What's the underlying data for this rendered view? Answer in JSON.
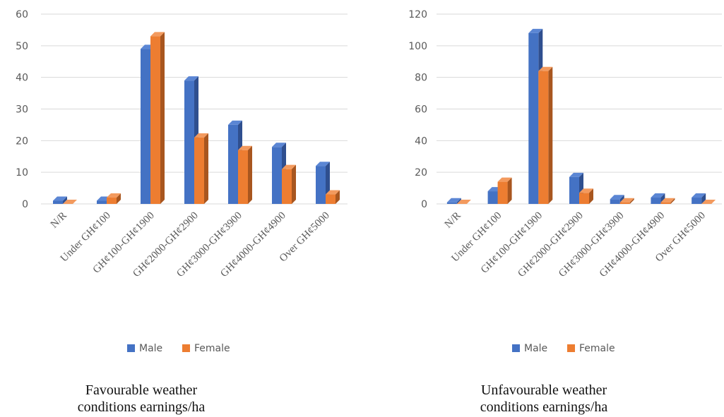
{
  "legend": [
    {
      "label": "Male",
      "color": "#4472C4",
      "side": "#2F4F8F",
      "top": "#5B86D4"
    },
    {
      "label": "Female",
      "color": "#ED7D31",
      "side": "#A8561F",
      "top": "#F39A5E"
    }
  ],
  "captions": [
    {
      "line1": "Favourable weather",
      "line2": "conditions earnings/ha"
    },
    {
      "line1": "Unfavourable weather",
      "line2": "conditions earnings/ha"
    }
  ],
  "chart_data": [
    {
      "type": "bar",
      "title": "",
      "categories": [
        "N/R",
        "Under GH¢100",
        "GH¢100-GH¢1900",
        "GH¢2000-GH¢2900",
        "GH¢3000-GH¢3900",
        "GH¢4000-GH¢4900",
        "Over GH¢5000"
      ],
      "series": [
        {
          "name": "Male",
          "values": [
            1,
            1,
            49,
            39,
            25,
            18,
            12
          ]
        },
        {
          "name": "Female",
          "values": [
            0,
            2,
            53,
            21,
            17,
            11,
            3
          ]
        }
      ],
      "yticks": [
        0,
        10,
        20,
        30,
        40,
        50,
        60
      ],
      "ylim": [
        0,
        60
      ],
      "grid": true,
      "legend_position": "bottom"
    },
    {
      "type": "bar",
      "title": "",
      "categories": [
        "N/R",
        "Under GH¢100",
        "GH¢100-GH¢1900",
        "GH¢2000-GH¢2900",
        "GH¢3000-GH¢3900",
        "GH¢4000-GH¢4900",
        "Over GH¢5000"
      ],
      "series": [
        {
          "name": "Male",
          "values": [
            1,
            8,
            108,
            17,
            3,
            4,
            4
          ]
        },
        {
          "name": "Female",
          "values": [
            0,
            14,
            84,
            7,
            1,
            1,
            0
          ]
        }
      ],
      "yticks": [
        0,
        20,
        40,
        60,
        80,
        100,
        120
      ],
      "ylim": [
        0,
        120
      ],
      "grid": true,
      "legend_position": "bottom"
    }
  ]
}
